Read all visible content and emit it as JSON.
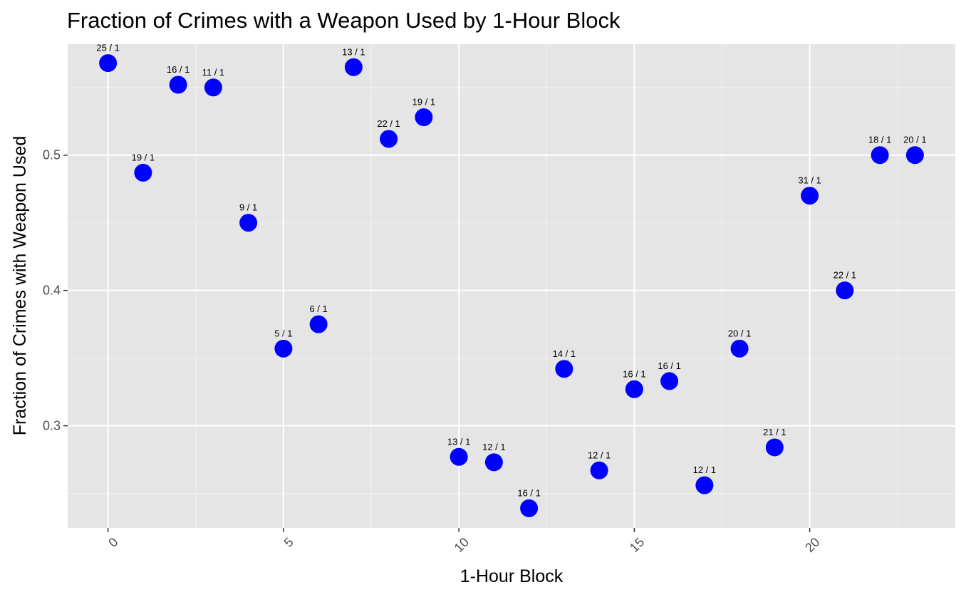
{
  "chart_data": {
    "type": "scatter",
    "title": "Fraction of Crimes with a Weapon Used by 1-Hour Block",
    "xlabel": "1-Hour Block",
    "ylabel": "Fraction of Crimes with Weapon Used",
    "xlim": [
      -1.15,
      24.15
    ],
    "ylim": [
      0.2245,
      0.582
    ],
    "x_ticks": [
      0,
      5,
      10,
      15,
      20
    ],
    "y_ticks": [
      0.3,
      0.4,
      0.5
    ],
    "y_tick_labels": [
      "0.3",
      "0.4",
      "0.5"
    ],
    "x_tick_rotation": "45",
    "grid": true,
    "point_color": "#0000ff",
    "panel_color": "#e5e5e5",
    "points": [
      {
        "x": 0,
        "y": 0.568,
        "label": "25 / 1"
      },
      {
        "x": 1,
        "y": 0.487,
        "label": "19 / 1"
      },
      {
        "x": 2,
        "y": 0.552,
        "label": "16 / 1"
      },
      {
        "x": 3,
        "y": 0.55,
        "label": "11 / 1"
      },
      {
        "x": 4,
        "y": 0.45,
        "label": "9 / 1"
      },
      {
        "x": 5,
        "y": 0.357,
        "label": "5 / 1"
      },
      {
        "x": 6,
        "y": 0.375,
        "label": "6 / 1"
      },
      {
        "x": 7,
        "y": 0.565,
        "label": "13 / 1"
      },
      {
        "x": 8,
        "y": 0.512,
        "label": "22 / 1"
      },
      {
        "x": 9,
        "y": 0.528,
        "label": "19 / 1"
      },
      {
        "x": 10,
        "y": 0.277,
        "label": "13 / 1"
      },
      {
        "x": 11,
        "y": 0.273,
        "label": "12 / 1"
      },
      {
        "x": 12,
        "y": 0.239,
        "label": "16 / 1"
      },
      {
        "x": 13,
        "y": 0.342,
        "label": "14 / 1"
      },
      {
        "x": 14,
        "y": 0.267,
        "label": "12 / 1"
      },
      {
        "x": 15,
        "y": 0.327,
        "label": "16 / 1"
      },
      {
        "x": 16,
        "y": 0.333,
        "label": "16 / 1"
      },
      {
        "x": 17,
        "y": 0.256,
        "label": "12 / 1"
      },
      {
        "x": 18,
        "y": 0.357,
        "label": "20 / 1"
      },
      {
        "x": 19,
        "y": 0.284,
        "label": "21 / 1"
      },
      {
        "x": 20,
        "y": 0.47,
        "label": "31 / 1"
      },
      {
        "x": 21,
        "y": 0.4,
        "label": "22 / 1"
      },
      {
        "x": 22,
        "y": 0.5,
        "label": "18 / 1"
      },
      {
        "x": 23,
        "y": 0.5,
        "label": "20 / 1"
      }
    ]
  }
}
